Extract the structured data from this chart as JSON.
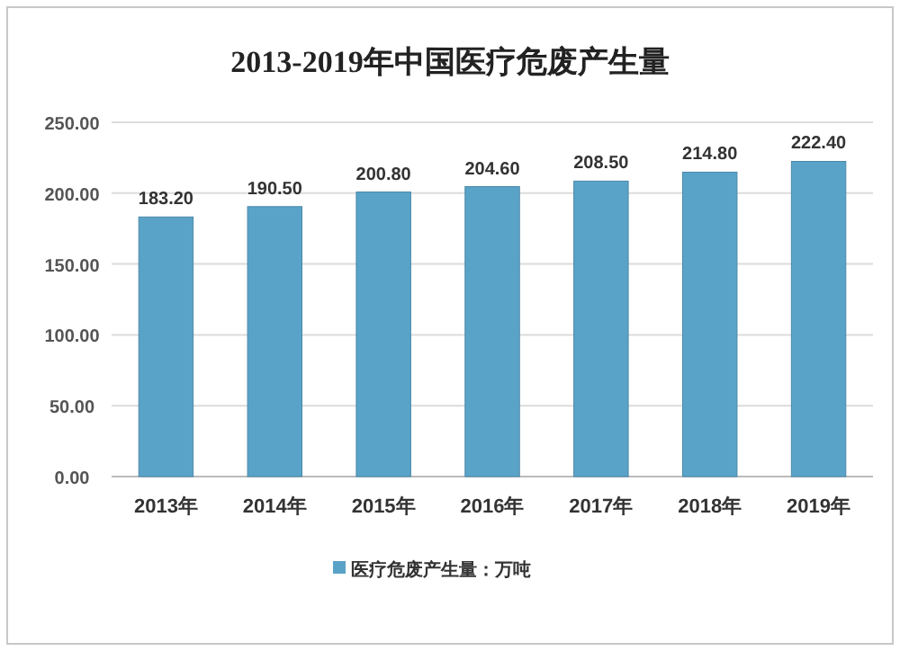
{
  "chart_data": {
    "type": "bar",
    "title": "2013-2019年中国医疗危废产生量",
    "categories": [
      "2013年",
      "2014年",
      "2015年",
      "2016年",
      "2017年",
      "2018年",
      "2019年"
    ],
    "series": [
      {
        "name": "医疗危废产生量：万吨",
        "color": "#5aa3c8",
        "values": [
          183.2,
          190.5,
          200.8,
          204.6,
          208.5,
          214.8,
          222.4
        ]
      }
    ],
    "value_labels": [
      "183.20",
      "190.50",
      "200.80",
      "204.60",
      "208.50",
      "214.80",
      "222.40"
    ],
    "ylim": [
      0,
      250
    ],
    "yticks": [
      {
        "value": 0,
        "label": "0.00"
      },
      {
        "value": 50,
        "label": "50.00"
      },
      {
        "value": 100,
        "label": "100.00"
      },
      {
        "value": 150,
        "label": "150.00"
      },
      {
        "value": 200,
        "label": "200.00"
      },
      {
        "value": 250,
        "label": "250.00"
      }
    ],
    "grid": "y",
    "legend": "bottom"
  }
}
